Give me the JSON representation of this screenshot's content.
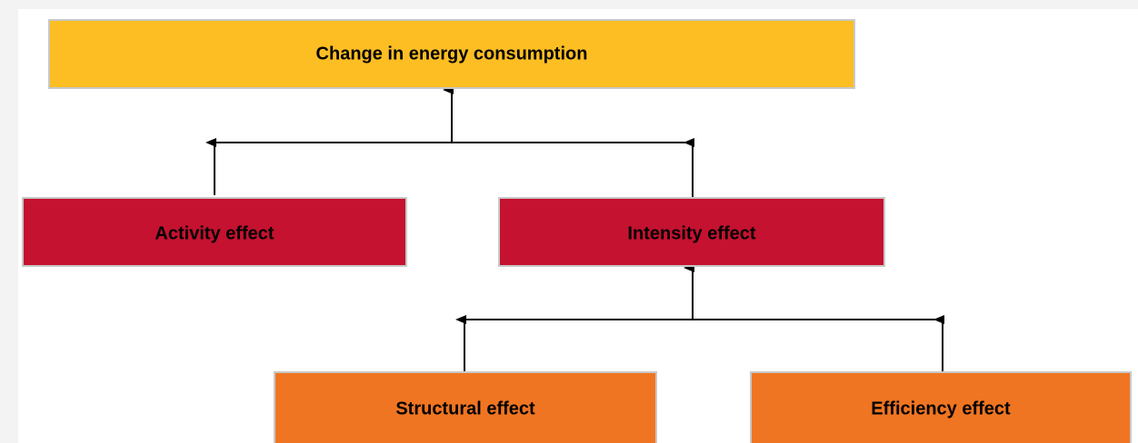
{
  "nodes": [
    {
      "label": "Change in energy consumption"
    },
    {
      "label": "Activity effect"
    },
    {
      "label": "Intensity effect"
    },
    {
      "label": "Structural effect"
    },
    {
      "label": "Efficiency effect"
    }
  ]
}
